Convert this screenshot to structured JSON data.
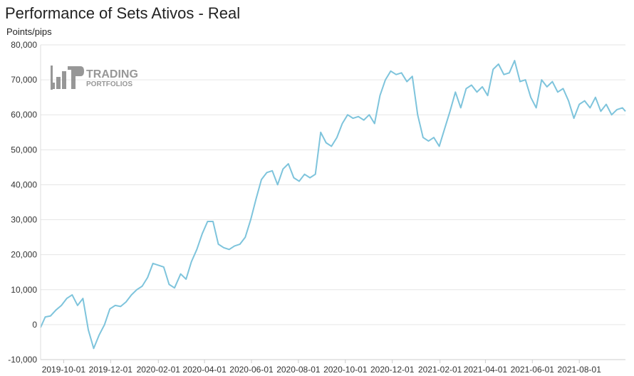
{
  "chart_data": {
    "type": "line",
    "title": "Performance of Sets Ativos - Real",
    "ylabel": "Points/pips",
    "xlabel": "",
    "ylim": [
      -10000,
      80000
    ],
    "y_ticks": [
      -10000,
      0,
      10000,
      20000,
      30000,
      40000,
      50000,
      60000,
      70000,
      80000
    ],
    "y_tick_labels": [
      "-10,000",
      "0",
      "10,000",
      "20,000",
      "30,000",
      "40,000",
      "50,000",
      "60,000",
      "70,000",
      "80,000"
    ],
    "x_range": [
      "2019-09-01",
      "2021-09-30"
    ],
    "x_ticks": [
      "2019-10-01",
      "2019-12-01",
      "2020-02-01",
      "2020-04-01",
      "2020-06-01",
      "2020-08-01",
      "2020-10-01",
      "2020-12-01",
      "2021-02-01",
      "2021-04-01",
      "2021-06-01",
      "2021-08-01"
    ],
    "grid": true,
    "legend": "none",
    "series": [
      {
        "color": "#7ec4dc",
        "x": [
          "2019-09-01",
          "2019-09-07",
          "2019-09-14",
          "2019-09-21",
          "2019-09-28",
          "2019-10-05",
          "2019-10-12",
          "2019-10-19",
          "2019-10-26",
          "2019-11-02",
          "2019-11-09",
          "2019-11-16",
          "2019-11-23",
          "2019-11-30",
          "2019-12-07",
          "2019-12-14",
          "2019-12-21",
          "2019-12-28",
          "2020-01-04",
          "2020-01-11",
          "2020-01-18",
          "2020-01-25",
          "2020-02-01",
          "2020-02-08",
          "2020-02-15",
          "2020-02-22",
          "2020-03-01",
          "2020-03-08",
          "2020-03-15",
          "2020-03-22",
          "2020-03-29",
          "2020-04-05",
          "2020-04-12",
          "2020-04-19",
          "2020-04-26",
          "2020-05-03",
          "2020-05-10",
          "2020-05-17",
          "2020-05-24",
          "2020-05-31",
          "2020-06-07",
          "2020-06-14",
          "2020-06-21",
          "2020-06-28",
          "2020-07-05",
          "2020-07-12",
          "2020-07-19",
          "2020-07-26",
          "2020-08-02",
          "2020-08-09",
          "2020-08-16",
          "2020-08-23",
          "2020-08-30",
          "2020-09-06",
          "2020-09-13",
          "2020-09-20",
          "2020-09-27",
          "2020-10-04",
          "2020-10-11",
          "2020-10-18",
          "2020-10-25",
          "2020-11-01",
          "2020-11-08",
          "2020-11-15",
          "2020-11-22",
          "2020-11-29",
          "2020-12-06",
          "2020-12-13",
          "2020-12-20",
          "2020-12-27",
          "2021-01-03",
          "2021-01-10",
          "2021-01-17",
          "2021-01-24",
          "2021-01-31",
          "2021-02-07",
          "2021-02-14",
          "2021-02-21",
          "2021-02-28",
          "2021-03-07",
          "2021-03-14",
          "2021-03-21",
          "2021-03-28",
          "2021-04-04",
          "2021-04-11",
          "2021-04-18",
          "2021-04-25",
          "2021-05-02",
          "2021-05-09",
          "2021-05-16",
          "2021-05-23",
          "2021-05-30",
          "2021-06-06",
          "2021-06-13",
          "2021-06-20",
          "2021-06-27",
          "2021-07-04",
          "2021-07-11",
          "2021-07-18",
          "2021-07-25",
          "2021-08-01",
          "2021-08-08",
          "2021-08-15",
          "2021-08-22",
          "2021-08-29",
          "2021-09-05",
          "2021-09-12",
          "2021-09-19",
          "2021-09-26",
          "2021-09-30"
        ],
        "values": [
          -800,
          2200,
          2500,
          4200,
          5500,
          7500,
          8500,
          5500,
          7500,
          -1500,
          -6800,
          -3000,
          0,
          4500,
          5500,
          5200,
          6500,
          8500,
          10000,
          11000,
          13500,
          17500,
          17000,
          16500,
          11500,
          10500,
          14500,
          13000,
          18000,
          21500,
          26000,
          29500,
          29500,
          23000,
          22000,
          21500,
          22500,
          23000,
          25000,
          30000,
          36000,
          41500,
          43500,
          44000,
          40000,
          44500,
          46000,
          42000,
          41000,
          43000,
          42000,
          43000,
          55000,
          52000,
          51000,
          53500,
          57500,
          60000,
          59000,
          59500,
          58500,
          60000,
          57500,
          65500,
          70000,
          72500,
          71500,
          72000,
          69500,
          71000,
          60000,
          53500,
          52500,
          53500,
          51000,
          56000,
          61000,
          66500,
          62000,
          67500,
          68500,
          66500,
          68000,
          65500,
          73000,
          74500,
          71500,
          72000,
          75500,
          69500,
          70000,
          65000,
          62000,
          70000,
          68000,
          69500,
          66500,
          67500,
          64000,
          59000,
          63000,
          64000,
          62000,
          65000,
          61000,
          63000,
          60000,
          61500,
          62000,
          61000
        ]
      }
    ],
    "watermark": {
      "line1": "TRADING",
      "line2": "PORTFOLIOS"
    }
  }
}
